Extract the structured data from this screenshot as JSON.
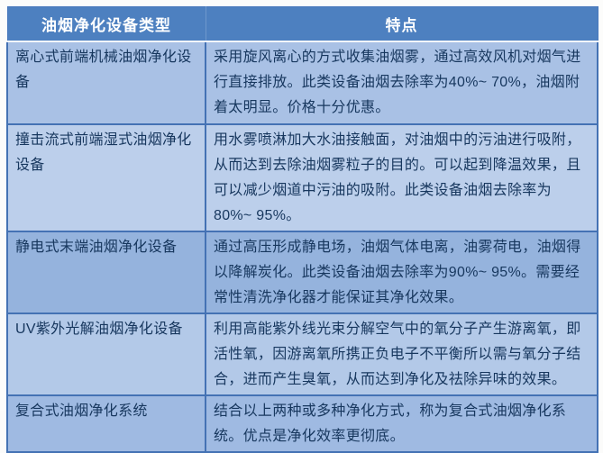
{
  "table": {
    "headers": [
      "油烟净化设备类型",
      "特点"
    ],
    "rows": [
      {
        "type": "离心式前端机械油烟净化设备",
        "features": "采用旋风离心的方式收集油烟雾，通过高效风机对烟气进行直接排放。此类设备油烟去除率为40%~ 70%，油烟附着太明显。价格十分优惠。"
      },
      {
        "type": "撞击流式前端湿式油烟净化设备",
        "features": "用水雾喷淋加大水油接触面，对油烟中的污油进行吸附，从而达到去除油烟雾粒子的目的。可以起到降温效果，且可以减少烟道中污油的吸附。此类设备油烟去除率为80%~ 95%。"
      },
      {
        "type": "静电式末端油烟净化设备",
        "features": "通过高压形成静电场，油烟气体电离，油雾荷电，油烟得以降解炭化。此类设备油烟去除率为90%~ 95%。需要经常性清洗净化器才能保证其净化效果。"
      },
      {
        "type": "UV紫外光解油烟净化设备",
        "features": "利用高能紫外线光束分解空气中的氧分子产生游离氧，即活性氧，因游离氧所携正负电子不平衡所以需与氧分子结合，进而产生臭氧，从而达到净化及祛除异味的效果。"
      },
      {
        "type": "复合式油烟净化系统",
        "features": "结合以上两种或多种净化方式，称为复合式油烟净化系统。优点是净化效率更彻底。"
      }
    ]
  },
  "colors": {
    "header_bg": "#4d80c0",
    "header_text": "#ffffff",
    "body_text": "#17375e",
    "border": "#4472b4",
    "row_backgrounds": [
      "#a9c1e5",
      "#bccfeb",
      "#95b3dd",
      "#b3c9e8",
      "#9fbae2"
    ]
  }
}
